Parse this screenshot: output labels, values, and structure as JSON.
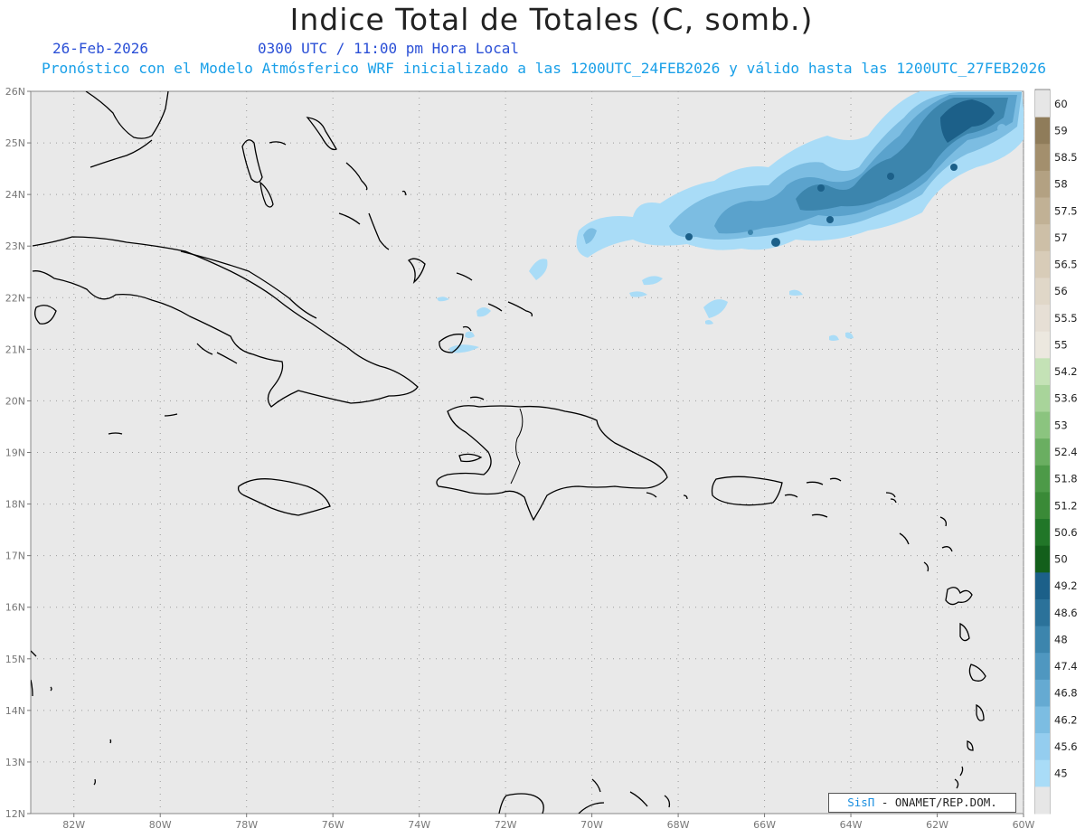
{
  "header": {
    "title": "Indice Total de Totales (C, somb.)",
    "date": "26-Feb-2026",
    "time": "0300 UTC / 11:00 pm Hora Local",
    "forecast": "Pronóstico con el Modelo Atmósferico WRF inicializado a las 1200UTC_24FEB2026 y válido hasta las  1200UTC_27FEB2026"
  },
  "map": {
    "lon_labels": [
      "82W",
      "80W",
      "78W",
      "76W",
      "74W",
      "72W",
      "70W",
      "68W",
      "66W",
      "64W",
      "62W",
      "60W"
    ],
    "lat_labels": [
      "26N",
      "25N",
      "24N",
      "23N",
      "22N",
      "21N",
      "20N",
      "19N",
      "18N",
      "17N",
      "16N",
      "15N",
      "14N",
      "13N",
      "12N"
    ],
    "background_color": "#e9e9e9",
    "coastline_color": "#000000"
  },
  "colorbar": {
    "levels": [
      "60",
      "59",
      "58.5",
      "58",
      "57.5",
      "57",
      "56.5",
      "56",
      "55.5",
      "55",
      "54.2",
      "53.6",
      "53",
      "52.4",
      "51.8",
      "51.2",
      "50.6",
      "50",
      "49.2",
      "48.6",
      "48",
      "47.4",
      "46.8",
      "46.2",
      "45.6",
      "45"
    ],
    "colors": [
      "#e6e6e6",
      "#8f7c5a",
      "#a38f6d",
      "#b3a182",
      "#c1b195",
      "#cdbfa7",
      "#d8ccb8",
      "#e0d7c8",
      "#e6dfd5",
      "#ece8df",
      "#c4e2b6",
      "#a8d49a",
      "#8bc47f",
      "#6aae61",
      "#4d9a48",
      "#3a8a37",
      "#217628",
      "#135f1b",
      "#1c6089",
      "#2b729a",
      "#3c85ad",
      "#4f97c0",
      "#65aad2",
      "#7cbde2",
      "#94cdef",
      "#a9dcf7",
      "#e6e6e6"
    ]
  },
  "credit": {
    "brand": "SisΠ",
    "text": " - ONAMET/REP.DOM."
  }
}
